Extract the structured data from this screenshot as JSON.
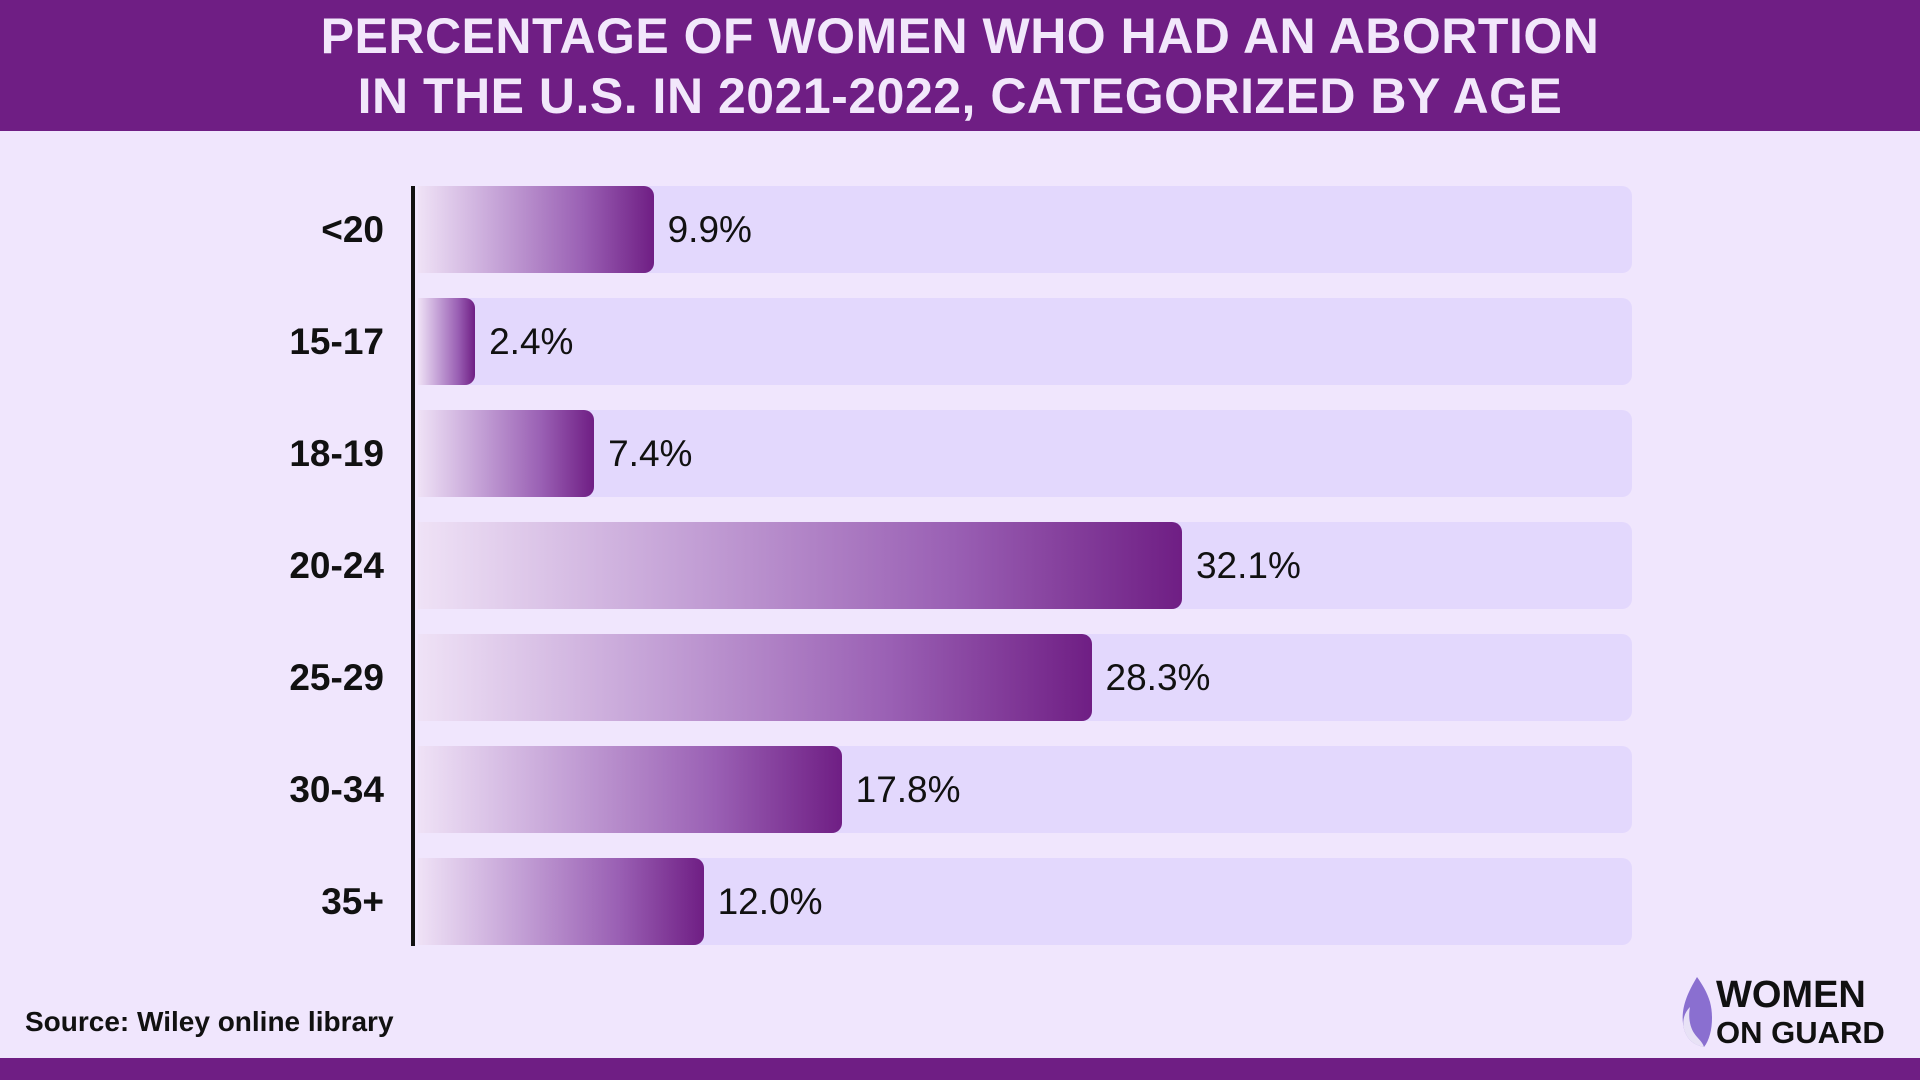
{
  "title": {
    "line1": "PERCENTAGE OF WOMEN WHO HAD AN ABORTION",
    "line2": "IN THE U.S. IN 2021-2022, CATEGORIZED BY AGE"
  },
  "chart_data": {
    "type": "bar",
    "orientation": "horizontal",
    "title": "PERCENTAGE OF WOMEN WHO HAD AN ABORTION IN THE U.S. IN 2021-2022, CATEGORIZED BY AGE",
    "categories": [
      "<20",
      "15-17",
      "18-19",
      "20-24",
      "25-29",
      "30-34",
      "35+"
    ],
    "values": [
      9.9,
      2.4,
      7.4,
      32.1,
      28.3,
      17.8,
      12.0
    ],
    "data_labels": [
      "9.9%",
      "2.4%",
      "7.4%",
      "32.1%",
      "28.3%",
      "17.8%",
      "12.0%"
    ],
    "xlabel": "",
    "ylabel": "",
    "grid": false,
    "legend": "none",
    "colors": {
      "bar_start": "#efe2f6",
      "bar_end": "#6f1e84",
      "track": "#e3d8fd",
      "header": "#6f1e84",
      "background": "#f0e6fd"
    }
  },
  "source": "Source: Wiley online library",
  "logo": {
    "line1": "WOMEN",
    "line2": "ON GUARD"
  }
}
